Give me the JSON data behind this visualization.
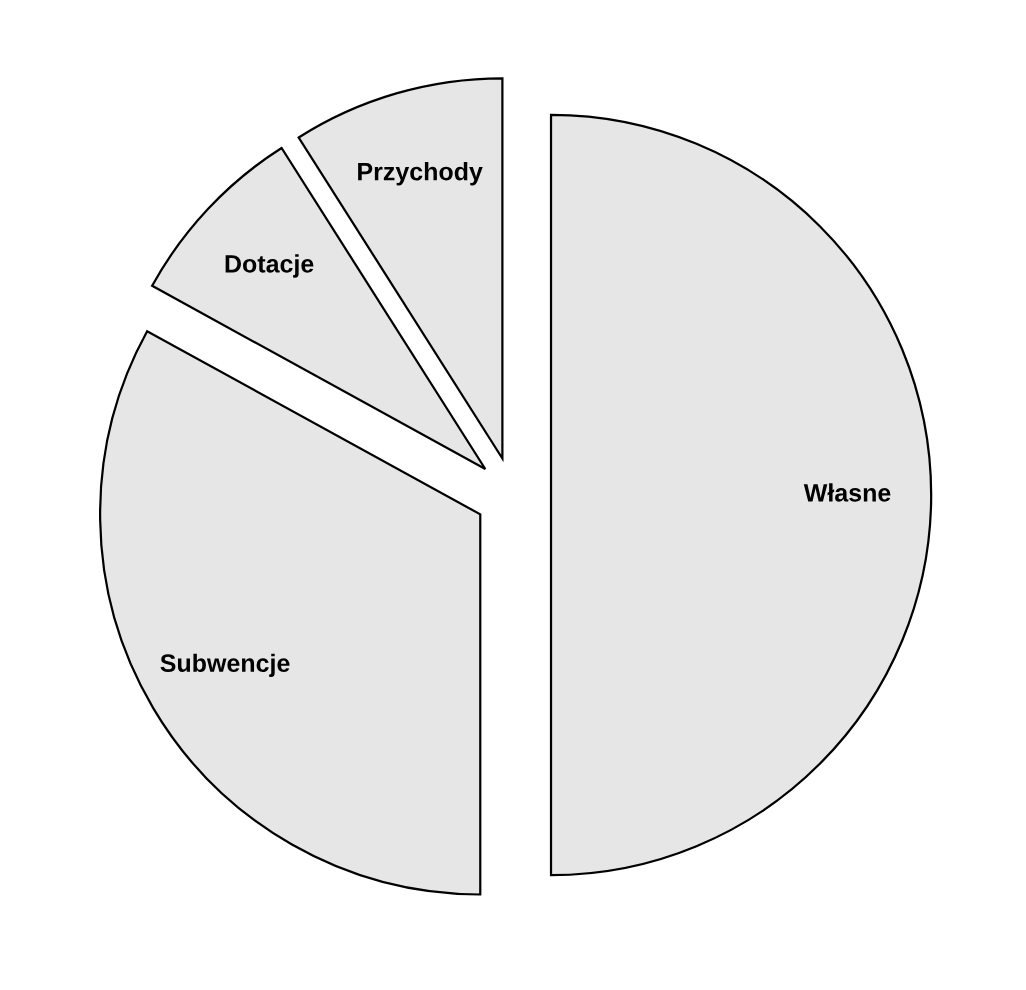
{
  "chart_data": {
    "type": "pie",
    "categories": [
      "Własne",
      "Subwencje",
      "Dotacje",
      "Przychody"
    ],
    "values": [
      50,
      33,
      8,
      9
    ],
    "colors": [
      "#e6e6e6",
      "#e6e6e6",
      "#e6e6e6",
      "#e6e6e6"
    ]
  }
}
